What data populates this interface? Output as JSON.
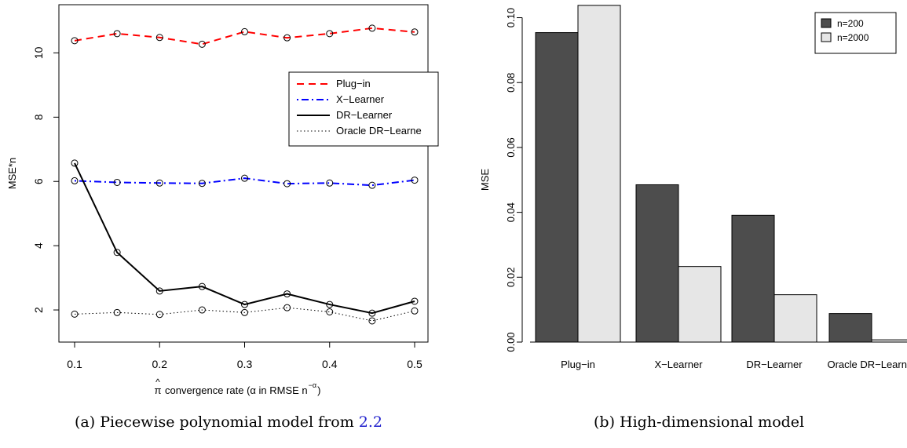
{
  "captions": {
    "left_prefix": "(a) Piecewise polynomial model from ",
    "left_ref": "2.2",
    "right": "(b) High-dimensional model"
  },
  "chart_data": [
    {
      "type": "line",
      "title": "",
      "ylabel": "MSE*n",
      "xlabel": {
        "pi_hat": "π",
        "hat": "^",
        "text": "convergence rate (α in RMSE n",
        "superscript": "−α",
        "close": ")"
      },
      "x": [
        0.1,
        0.15,
        0.2,
        0.25,
        0.3,
        0.35,
        0.4,
        0.45,
        0.5
      ],
      "xlim": [
        0.1,
        0.5
      ],
      "ylim": [
        1.0,
        11.5
      ],
      "xticks": [
        "0.1",
        "0.2",
        "0.3",
        "0.4",
        "0.5"
      ],
      "xtick_values": [
        0.1,
        0.2,
        0.3,
        0.4,
        0.5
      ],
      "yticks": [
        "2",
        "4",
        "6",
        "8",
        "10"
      ],
      "ytick_values": [
        2,
        4,
        6,
        8,
        10
      ],
      "grid": false,
      "legend_position": "right",
      "series": [
        {
          "name": "Plug−in",
          "color": "#ff0000",
          "dash": "dashed",
          "values": [
            10.38,
            10.6,
            10.48,
            10.27,
            10.66,
            10.47,
            10.6,
            10.77,
            10.65
          ]
        },
        {
          "name": "X−Learner",
          "color": "#0000ff",
          "dash": "dotdash",
          "values": [
            6.02,
            5.97,
            5.95,
            5.94,
            6.1,
            5.93,
            5.95,
            5.88,
            6.04
          ]
        },
        {
          "name": "DR−Learner",
          "color": "#000000",
          "dash": "solid",
          "values": [
            6.57,
            3.79,
            2.59,
            2.73,
            2.17,
            2.5,
            2.17,
            1.9,
            2.27
          ]
        },
        {
          "name": "Oracle DR−Learne",
          "color": "#000000",
          "dash": "dotted",
          "values": [
            1.87,
            1.92,
            1.86,
            2.0,
            1.92,
            2.07,
            1.94,
            1.66,
            1.97
          ]
        }
      ]
    },
    {
      "type": "bar",
      "title": "",
      "ylabel": "MSE",
      "xlabel": "",
      "categories": [
        "Plug−in",
        "X−Learner",
        "DR−Learner",
        "Oracle DR−Learner"
      ],
      "ylim": [
        0,
        0.104
      ],
      "yticks": [
        "0.00",
        "0.02",
        "0.04",
        "0.06",
        "0.08",
        "0.10"
      ],
      "ytick_values": [
        0,
        0.02,
        0.04,
        0.06,
        0.08,
        0.1
      ],
      "grid": false,
      "legend_position": "top-right",
      "series": [
        {
          "name": "n=200",
          "color": "#4d4d4d",
          "values": [
            0.0954,
            0.0485,
            0.0391,
            0.0088
          ]
        },
        {
          "name": "n=2000",
          "color": "#e6e6e6",
          "values": [
            0.1038,
            0.0233,
            0.0146,
            0.0007
          ]
        }
      ]
    }
  ]
}
